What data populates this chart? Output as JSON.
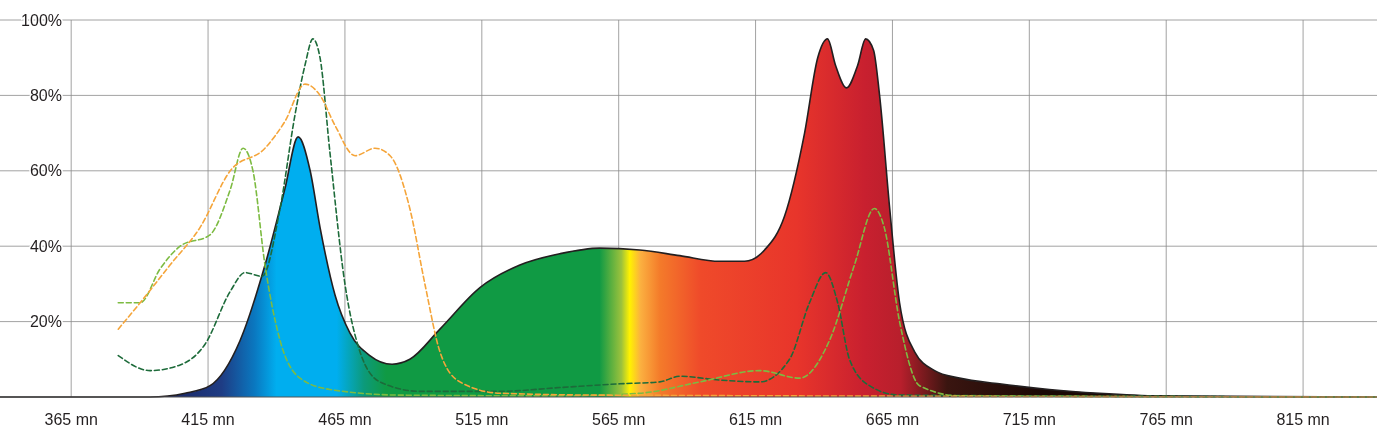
{
  "chart_data": {
    "type": "area",
    "xlim": [
      339,
      842
    ],
    "ylim": [
      0,
      100
    ],
    "xticks": [
      {
        "value": 365,
        "label": "365 mn"
      },
      {
        "value": 415,
        "label": "415 mn"
      },
      {
        "value": 465,
        "label": "465 mn"
      },
      {
        "value": 515,
        "label": "515 mn"
      },
      {
        "value": 565,
        "label": "565 mn"
      },
      {
        "value": 615,
        "label": "615 mn"
      },
      {
        "value": 665,
        "label": "665 mn"
      },
      {
        "value": 715,
        "label": "715 mn"
      },
      {
        "value": 765,
        "label": "765 mn"
      },
      {
        "value": 815,
        "label": "815 mn"
      }
    ],
    "yticks": [
      {
        "value": 20,
        "label": "20%"
      },
      {
        "value": 40,
        "label": "40%"
      },
      {
        "value": 60,
        "label": "60%"
      },
      {
        "value": 80,
        "label": "80%"
      },
      {
        "value": 100,
        "label": "100%"
      }
    ],
    "grid": true,
    "series": [
      {
        "color": "#109a44",
        "x": [
          339,
          393.8,
          406.6,
          415.7,
          426.7,
          435.8,
          443,
          447.9,
          452.3,
          455.9,
          461.4,
          466.8,
          474.1,
          482.2,
          488.7,
          499.7,
          514.3,
          528.9,
          543.5,
          558,
          572.7,
          587.3,
          601.9,
          611,
          618.3,
          625.6,
          632.9,
          637.7,
          641.3,
          644.2,
          648.2,
          652.3,
          655.2,
          658.1,
          660.3,
          664,
          667.6,
          673.1,
          680.4,
          689.5,
          704.1,
          722.3,
          740.6,
          762.5,
          841.7
        ],
        "values": [
          0,
          0,
          1,
          3,
          15,
          35,
          55,
          69,
          60,
          45,
          27,
          17,
          11,
          8.7,
          10,
          18,
          29,
          35,
          38,
          39.5,
          39,
          37.5,
          36,
          36,
          39,
          48,
          70,
          90,
          95,
          88,
          82,
          88,
          95,
          92,
          80,
          50,
          25,
          12,
          7,
          5,
          3.5,
          2,
          1,
          0.3,
          0
        ]
      },
      {
        "type": "line",
        "line_style": "dashed",
        "color": "#1d6b3a",
        "x": [
          382.2,
          393.8,
          404.8,
          413.9,
          423.1,
          428.5,
          434.7,
          441.3,
          446.8,
          450.4,
          453.3,
          455.9,
          459.5,
          465,
          470.5,
          477.8,
          492.4,
          521.6,
          543.5,
          565.4,
          580,
          587.3,
          601.9,
          616.5,
          627.4,
          634.7,
          640.6,
          645,
          649.3,
          656.6,
          667.6,
          841.7
        ],
        "values": [
          11,
          7,
          8.5,
          14,
          28,
          33,
          32,
          50,
          75,
          88,
          95,
          90,
          65,
          30,
          12,
          4,
          1.5,
          1.5,
          2.5,
          3.5,
          4,
          5.5,
          4.5,
          4,
          10,
          25,
          33,
          25,
          10,
          3,
          0.5,
          0
        ]
      },
      {
        "type": "line",
        "line_style": "dashed",
        "color": "#7dbb42",
        "x": [
          382.2,
          390.2,
          397.5,
          404.8,
          415.7,
          423.1,
          427.8,
          431.4,
          435.8,
          441.3,
          448.6,
          459.5,
          485.1,
          543.5,
          572.7,
          594.6,
          616.5,
          631.1,
          642,
          651.1,
          658.4,
          662,
          667.6,
          674.9,
          689.5,
          841.7
        ],
        "values": [
          25,
          25,
          34,
          40,
          43,
          55,
          66,
          60,
          35,
          15,
          5,
          2,
          0.5,
          0.3,
          1,
          4,
          7,
          5,
          15,
          35,
          50,
          45,
          20,
          3,
          0.3,
          0
        ]
      },
      {
        "type": "line",
        "line_style": "dashed",
        "color": "#f5a53a",
        "x": [
          382.2,
          390.2,
          401.1,
          412.1,
          423.1,
          435.8,
          443,
          450.4,
          455.9,
          461.4,
          468.7,
          476,
          481.5,
          488.7,
          494.2,
          499.7,
          507,
          521.6,
          558,
          841.7
        ],
        "values": [
          18,
          25,
          35,
          45,
          60,
          66,
          73,
          83,
          80,
          72,
          64,
          66,
          64,
          50,
          30,
          12,
          4,
          1,
          0.5,
          0
        ]
      }
    ]
  }
}
